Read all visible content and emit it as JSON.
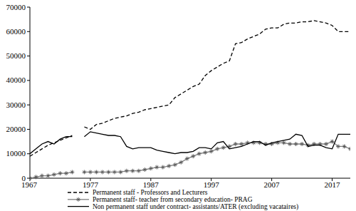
{
  "chart_data": {
    "type": "line",
    "x": [
      1967,
      1968,
      1969,
      1970,
      1971,
      1972,
      1973,
      1974,
      1975,
      1976,
      1977,
      1978,
      1979,
      1980,
      1981,
      1982,
      1983,
      1984,
      1985,
      1986,
      1987,
      1988,
      1989,
      1990,
      1991,
      1992,
      1993,
      1994,
      1995,
      1996,
      1997,
      1998,
      1999,
      2000,
      2001,
      2002,
      2003,
      2004,
      2005,
      2006,
      2007,
      2008,
      2009,
      2010,
      2011,
      2012,
      2013,
      2014,
      2015,
      2016,
      2017,
      2018,
      2019,
      2020
    ],
    "series": [
      {
        "name": "Permanent staff - Professors and Lecturers",
        "color": "#000000",
        "line_style": "dashed",
        "values": [
          9000,
          10500,
          12000,
          13500,
          14500,
          15500,
          16500,
          17500,
          null,
          21000,
          20000,
          22000,
          22500,
          23500,
          24500,
          25000,
          25500,
          26500,
          27000,
          28000,
          28500,
          29000,
          29500,
          30000,
          33000,
          34500,
          36000,
          37500,
          38500,
          42000,
          44000,
          45500,
          47000,
          48000,
          55000,
          55500,
          57000,
          58000,
          59000,
          61000,
          61500,
          61500,
          63000,
          63500,
          63500,
          64000,
          64000,
          64500,
          64000,
          63500,
          62500,
          60000,
          60000,
          60000
        ]
      },
      {
        "name": "Permanent staff- teacher from secondary education- PRAG",
        "color": "#808080",
        "line_style": "solid",
        "marker": "star",
        "values": [
          0,
          500,
          1000,
          1000,
          1500,
          2000,
          2000,
          2500,
          null,
          2500,
          2500,
          2500,
          2500,
          2500,
          2500,
          2500,
          3000,
          3000,
          3000,
          3500,
          4000,
          4500,
          4500,
          5000,
          5500,
          6500,
          8000,
          9000,
          10000,
          10500,
          11000,
          12000,
          12500,
          13000,
          14000,
          14000,
          14500,
          14500,
          14500,
          14000,
          14000,
          14500,
          14500,
          14000,
          14000,
          14000,
          13500,
          14000,
          14000,
          14000,
          15000,
          13000,
          13000,
          12000
        ]
      },
      {
        "name": "Non permanent staff under contract- assistants/ATER (excluding vacataires)",
        "color": "#000000",
        "line_style": "solid",
        "values": [
          10000,
          12000,
          14000,
          15000,
          14000,
          16000,
          17000,
          17000,
          null,
          17000,
          19000,
          18500,
          18000,
          17500,
          17500,
          17000,
          13000,
          12000,
          12500,
          12500,
          12500,
          11500,
          11000,
          10500,
          10000,
          10500,
          10500,
          11000,
          12500,
          12500,
          12000,
          14500,
          15000,
          12000,
          12500,
          13000,
          14000,
          15000,
          15000,
          13500,
          14500,
          15000,
          15500,
          16000,
          18000,
          17500,
          13000,
          13500,
          13500,
          12500,
          12000,
          18000,
          18000,
          18000
        ]
      }
    ],
    "xlim": [
      1967,
      2020
    ],
    "xticks": [
      1967,
      1977,
      1987,
      1997,
      2007,
      2017
    ],
    "ylim": [
      0,
      70000
    ],
    "yticks": [
      0,
      10000,
      20000,
      30000,
      40000,
      50000,
      60000,
      70000
    ],
    "grid": false,
    "legend": "bottom"
  }
}
